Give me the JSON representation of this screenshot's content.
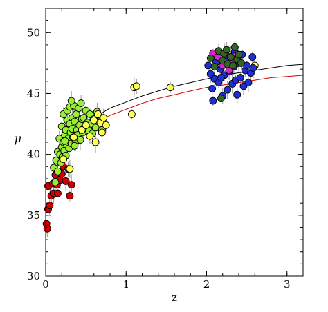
{
  "chart_data": {
    "type": "scatter",
    "title": "",
    "xlabel": "z",
    "ylabel": "μ",
    "xlim": [
      0,
      3.2
    ],
    "ylim": [
      30,
      52
    ],
    "x_ticks": [
      0,
      1,
      2,
      3
    ],
    "y_ticks": [
      30,
      35,
      40,
      45,
      50
    ],
    "x_tick_labels": [
      "0",
      "1",
      "2",
      "3"
    ],
    "y_tick_labels": [
      "30",
      "35",
      "40",
      "45",
      "50"
    ],
    "grid": false,
    "legend": "none",
    "series": [
      {
        "color": "#d40000",
        "points": [
          [
            0.01,
            34.3
          ],
          [
            0.02,
            33.9
          ],
          [
            0.03,
            35.5
          ],
          [
            0.03,
            37.4
          ],
          [
            0.05,
            35.8
          ],
          [
            0.07,
            36.6
          ],
          [
            0.09,
            37.6
          ],
          [
            0.1,
            36.8
          ],
          [
            0.12,
            38.3
          ],
          [
            0.14,
            37.5
          ],
          [
            0.15,
            36.8
          ],
          [
            0.18,
            37.9
          ],
          [
            0.2,
            38.4
          ],
          [
            0.22,
            39.0
          ],
          [
            0.25,
            37.8
          ],
          [
            0.28,
            38.8
          ],
          [
            0.3,
            36.6
          ],
          [
            0.32,
            37.5
          ]
        ]
      },
      {
        "color": "#99ee33",
        "points": [
          [
            0.1,
            38.9
          ],
          [
            0.12,
            37.7
          ],
          [
            0.13,
            39.5
          ],
          [
            0.15,
            40.2
          ],
          [
            0.15,
            38.6
          ],
          [
            0.17,
            41.3
          ],
          [
            0.18,
            40.0
          ],
          [
            0.19,
            39.3
          ],
          [
            0.2,
            40.6
          ],
          [
            0.2,
            42.3
          ],
          [
            0.21,
            39.8
          ],
          [
            0.22,
            41.0
          ],
          [
            0.22,
            43.3
          ],
          [
            0.23,
            40.3
          ],
          [
            0.24,
            41.6
          ],
          [
            0.25,
            42.0
          ],
          [
            0.25,
            39.9
          ],
          [
            0.26,
            40.8
          ],
          [
            0.27,
            42.8
          ],
          [
            0.27,
            43.6
          ],
          [
            0.28,
            41.3
          ],
          [
            0.29,
            40.5
          ],
          [
            0.3,
            42.5
          ],
          [
            0.3,
            43.9
          ],
          [
            0.31,
            41.8
          ],
          [
            0.32,
            40.9
          ],
          [
            0.33,
            42.1
          ],
          [
            0.33,
            43.0
          ],
          [
            0.34,
            41.4
          ],
          [
            0.35,
            44.0
          ],
          [
            0.36,
            42.7
          ],
          [
            0.37,
            41.0
          ],
          [
            0.38,
            43.3
          ],
          [
            0.39,
            42.0
          ],
          [
            0.4,
            41.6
          ],
          [
            0.41,
            43.8
          ],
          [
            0.42,
            42.4
          ],
          [
            0.43,
            41.2
          ],
          [
            0.44,
            44.2
          ],
          [
            0.45,
            42.9
          ],
          [
            0.46,
            41.8
          ],
          [
            0.47,
            43.0
          ],
          [
            0.48,
            42.2
          ],
          [
            0.5,
            43.6
          ],
          [
            0.52,
            42.6
          ],
          [
            0.54,
            41.9
          ],
          [
            0.55,
            43.3
          ],
          [
            0.57,
            42.5
          ],
          [
            0.58,
            41.7
          ],
          [
            0.6,
            42.9
          ],
          [
            0.62,
            42.2
          ],
          [
            0.64,
            43.5
          ],
          [
            0.66,
            42.7
          ],
          [
            0.7,
            42.0
          ],
          [
            0.32,
            44.4
          ],
          [
            0.24,
            41.1
          ],
          [
            0.36,
            40.7
          ]
        ]
      },
      {
        "color": "#ffff55",
        "points": [
          [
            0.22,
            39.6
          ],
          [
            0.3,
            38.8
          ],
          [
            0.35,
            41.4
          ],
          [
            0.45,
            42.0
          ],
          [
            0.5,
            42.4
          ],
          [
            0.55,
            41.5
          ],
          [
            0.6,
            42.8
          ],
          [
            0.62,
            41.0
          ],
          [
            0.65,
            43.3
          ],
          [
            0.68,
            42.6
          ],
          [
            0.7,
            41.8
          ],
          [
            0.72,
            43.0
          ],
          [
            0.75,
            42.4
          ],
          [
            1.07,
            43.3
          ],
          [
            1.1,
            45.5
          ],
          [
            1.13,
            45.6
          ],
          [
            1.55,
            45.5
          ],
          [
            2.6,
            47.3
          ]
        ]
      },
      {
        "color": "#1f2fd4",
        "points": [
          [
            2.02,
            47.3
          ],
          [
            2.05,
            46.6
          ],
          [
            2.07,
            45.4
          ],
          [
            2.08,
            44.4
          ],
          [
            2.1,
            46.2
          ],
          [
            2.12,
            47.6
          ],
          [
            2.15,
            45.9
          ],
          [
            2.17,
            47.0
          ],
          [
            2.2,
            44.8
          ],
          [
            2.22,
            46.5
          ],
          [
            2.24,
            47.8
          ],
          [
            2.26,
            45.3
          ],
          [
            2.28,
            46.8
          ],
          [
            2.3,
            48.0
          ],
          [
            2.32,
            45.8
          ],
          [
            2.34,
            47.2
          ],
          [
            2.36,
            46.1
          ],
          [
            2.38,
            44.9
          ],
          [
            2.4,
            47.5
          ],
          [
            2.42,
            46.3
          ],
          [
            2.44,
            48.2
          ],
          [
            2.46,
            45.6
          ],
          [
            2.48,
            46.9
          ],
          [
            2.5,
            47.3
          ],
          [
            2.52,
            45.9
          ],
          [
            2.55,
            46.7
          ],
          [
            2.57,
            48.0
          ],
          [
            2.58,
            47.1
          ],
          [
            2.35,
            48.4
          ],
          [
            2.18,
            46.3
          ]
        ]
      },
      {
        "color": "#dd22cc",
        "points": [
          [
            2.08,
            48.3
          ],
          [
            2.14,
            48.0
          ],
          [
            2.2,
            47.3
          ],
          [
            2.24,
            48.2
          ],
          [
            2.28,
            46.9
          ],
          [
            2.32,
            47.7
          ],
          [
            2.36,
            48.1
          ]
        ]
      },
      {
        "color": "#336622",
        "points": [
          [
            2.05,
            47.9
          ],
          [
            2.1,
            47.2
          ],
          [
            2.15,
            48.5
          ],
          [
            2.2,
            47.7
          ],
          [
            2.22,
            48.3
          ],
          [
            2.25,
            48.6
          ],
          [
            2.26,
            47.4
          ],
          [
            2.3,
            48.0
          ],
          [
            2.33,
            47.3
          ],
          [
            2.35,
            48.8
          ],
          [
            2.38,
            47.8
          ],
          [
            2.4,
            48.2
          ],
          [
            2.43,
            47.5
          ],
          [
            2.18,
            44.6
          ]
        ]
      }
    ],
    "curves": [
      {
        "color": "#000000",
        "points": [
          [
            0.05,
            36.8
          ],
          [
            0.1,
            38.3
          ],
          [
            0.2,
            40.2
          ],
          [
            0.3,
            41.3
          ],
          [
            0.4,
            42.0
          ],
          [
            0.5,
            42.6
          ],
          [
            0.6,
            43.0
          ],
          [
            0.7,
            43.4
          ],
          [
            0.8,
            43.8
          ],
          [
            1.0,
            44.3
          ],
          [
            1.2,
            44.8
          ],
          [
            1.4,
            45.2
          ],
          [
            1.6,
            45.6
          ],
          [
            1.8,
            45.9
          ],
          [
            2.0,
            46.2
          ],
          [
            2.2,
            46.5
          ],
          [
            2.4,
            46.7
          ],
          [
            2.6,
            46.9
          ],
          [
            2.8,
            47.1
          ],
          [
            3.0,
            47.3
          ],
          [
            3.2,
            47.4
          ]
        ]
      },
      {
        "color": "#d40000",
        "points": [
          [
            0.05,
            36.7
          ],
          [
            0.1,
            38.2
          ],
          [
            0.2,
            39.9
          ],
          [
            0.3,
            40.9
          ],
          [
            0.4,
            41.6
          ],
          [
            0.5,
            42.1
          ],
          [
            0.6,
            42.5
          ],
          [
            0.7,
            42.9
          ],
          [
            0.8,
            43.2
          ],
          [
            1.0,
            43.7
          ],
          [
            1.2,
            44.2
          ],
          [
            1.4,
            44.6
          ],
          [
            1.6,
            44.9
          ],
          [
            1.8,
            45.2
          ],
          [
            2.0,
            45.5
          ],
          [
            2.2,
            45.7
          ],
          [
            2.4,
            45.9
          ],
          [
            2.6,
            46.1
          ],
          [
            2.8,
            46.3
          ],
          [
            3.0,
            46.4
          ],
          [
            3.2,
            46.5
          ]
        ]
      }
    ]
  }
}
